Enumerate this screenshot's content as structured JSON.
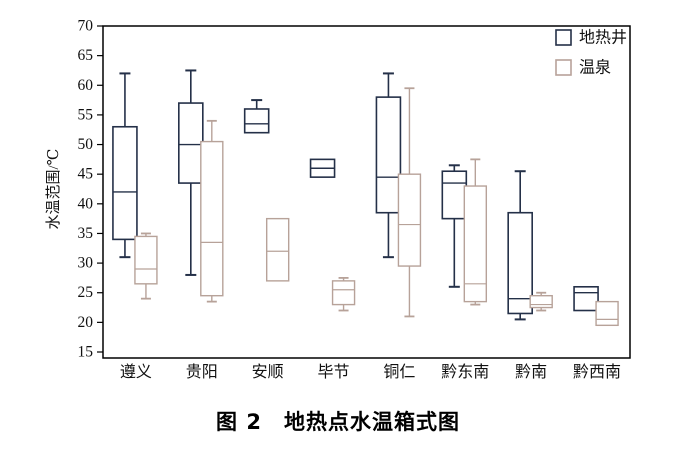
{
  "page": {
    "caption": "图 2　地热点水温箱式图"
  },
  "chart_data": {
    "type": "boxplot",
    "title": "",
    "xlabel": "",
    "ylabel": "水温范围/℃",
    "ylim": [
      15,
      70
    ],
    "yticks": [
      15,
      20,
      25,
      30,
      35,
      40,
      45,
      50,
      55,
      60,
      65,
      70
    ],
    "grid": false,
    "legend_position": "top-right-inside",
    "frame": true,
    "categories": [
      "遵义",
      "贵阳",
      "安顺",
      "毕节",
      "铜仁",
      "黔东南",
      "黔南",
      "黔西南"
    ],
    "series": [
      {
        "key": "well",
        "name": "地热井",
        "color": "#243048",
        "boxes": [
          {
            "low": 31,
            "q1": 34,
            "median": 42,
            "q3": 53,
            "high": 62
          },
          {
            "low": 28,
            "q1": 43.5,
            "median": 50,
            "q3": 57,
            "high": 62.5
          },
          {
            "low": 52,
            "q1": 52,
            "median": 53.5,
            "q3": 56,
            "high": 57.5
          },
          {
            "low": 44.5,
            "q1": 44.5,
            "median": 46,
            "q3": 47.5,
            "high": 47.5
          },
          {
            "low": 31,
            "q1": 38.5,
            "median": 44.5,
            "q3": 58,
            "high": 62
          },
          {
            "low": 26,
            "q1": 37.5,
            "median": 43.5,
            "q3": 45.5,
            "high": 46.5
          },
          {
            "low": 20.5,
            "q1": 21.5,
            "median": 24,
            "q3": 38.5,
            "high": 45.5
          },
          {
            "low": 22,
            "q1": 22,
            "median": 25,
            "q3": 26,
            "high": 26
          }
        ]
      },
      {
        "key": "spring",
        "name": "温泉",
        "color": "#b7a299",
        "boxes": [
          {
            "low": 24,
            "q1": 26.5,
            "median": 29,
            "q3": 34.5,
            "high": 35
          },
          {
            "low": 23.5,
            "q1": 24.5,
            "median": 33.5,
            "q3": 50.5,
            "high": 54
          },
          {
            "low": 27,
            "q1": 27,
            "median": 32,
            "q3": 37.5,
            "high": 37.5
          },
          {
            "low": 22,
            "q1": 23,
            "median": 25.5,
            "q3": 27,
            "high": 27.5
          },
          {
            "low": 21,
            "q1": 29.5,
            "median": 36.5,
            "q3": 45,
            "high": 59.5
          },
          {
            "low": 23,
            "q1": 23.5,
            "median": 26.5,
            "q3": 43,
            "high": 47.5
          },
          {
            "low": 22,
            "q1": 22.5,
            "median": 23,
            "q3": 24.5,
            "high": 25
          },
          {
            "low": 19.5,
            "q1": 19.5,
            "median": 20.5,
            "q3": 23.5,
            "high": 23.5
          }
        ]
      }
    ]
  }
}
